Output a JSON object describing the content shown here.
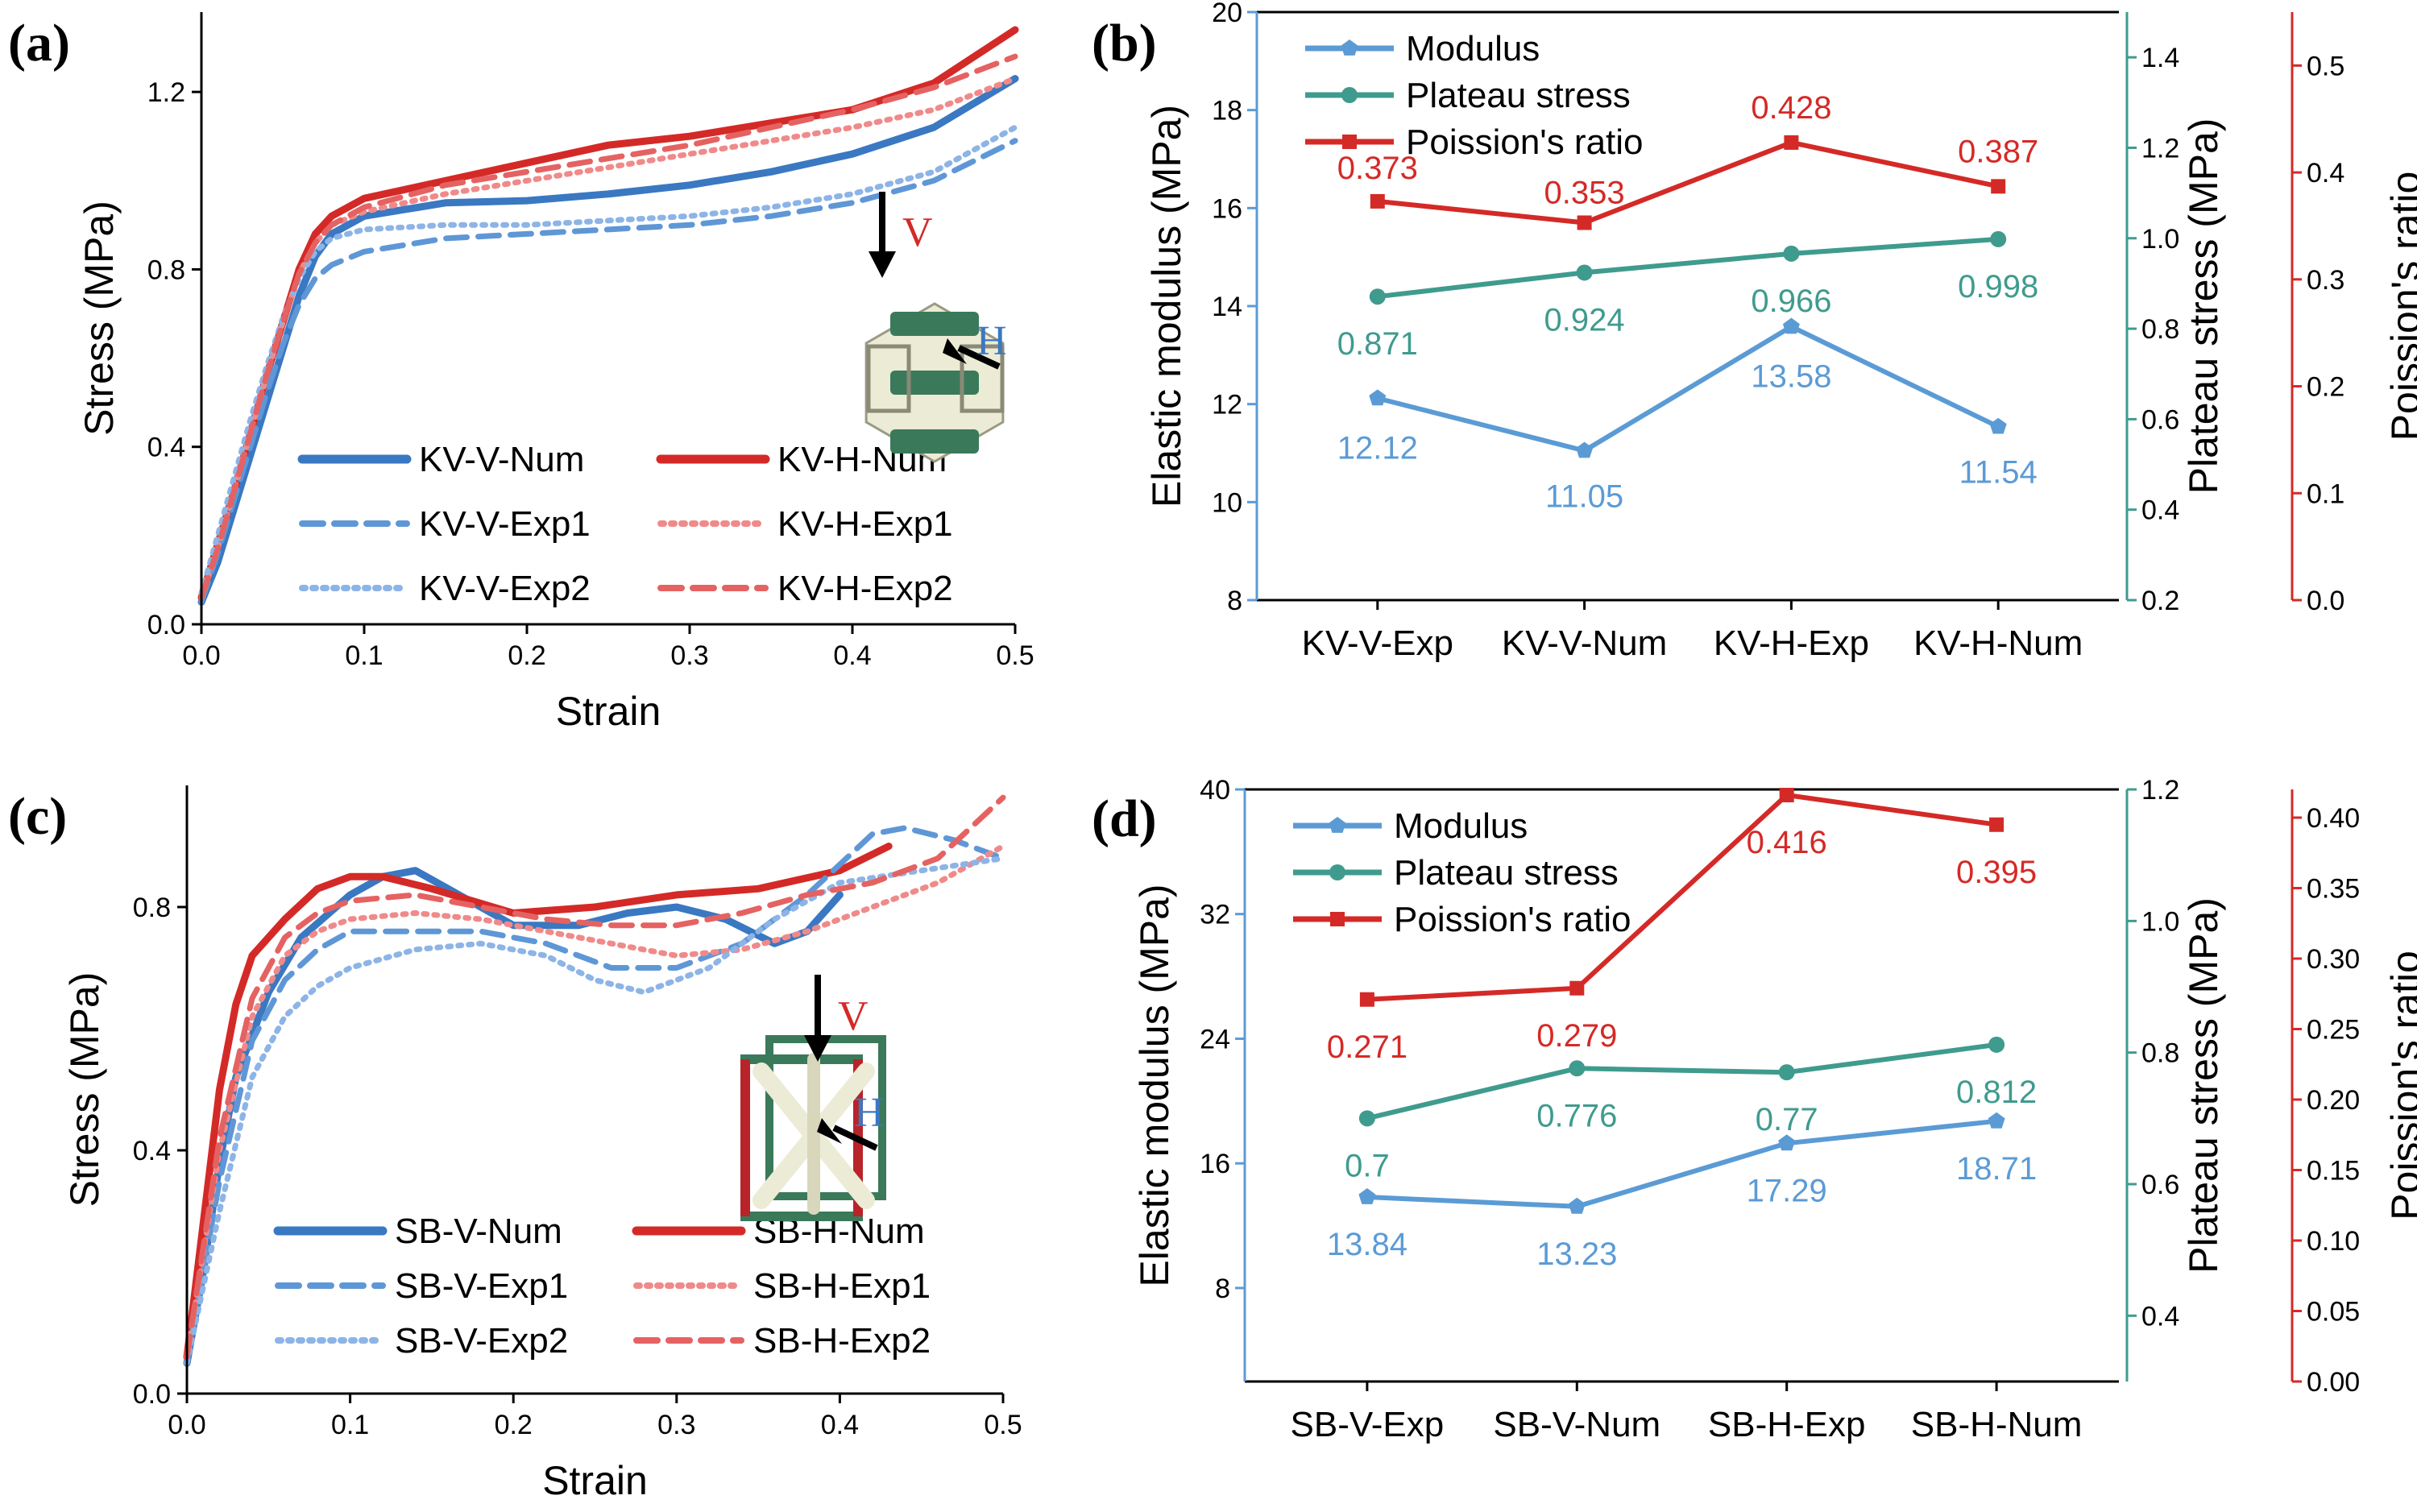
{
  "colors": {
    "blue": "#3a78c2",
    "red": "#d42a27",
    "blue_exp": "#5f97d6",
    "blue_exp2": "#8db4e6",
    "red_exp1": "#f08a8a",
    "red_exp2": "#e56262",
    "bar_blue": "#5b9bd5",
    "bar_teal": "#3f9b8e",
    "bar_red": "#d42a27",
    "frame_green": "#3a7a5a",
    "frame_cream": "#ecebd5"
  },
  "chart_data": [
    {
      "panel": "(a)",
      "type": "line",
      "xlabel": "Strain",
      "ylabel": "Stress (MPa)",
      "xlim": [
        0,
        0.5
      ],
      "ylim": [
        0,
        1.38
      ],
      "xticks": [
        "0.0",
        "0.1",
        "0.2",
        "0.3",
        "0.4",
        "0.5"
      ],
      "yticks": [
        "0.0",
        "0.4",
        "0.8",
        "1.2"
      ],
      "legend_position": "bottom-right",
      "inset_labels": [
        "V",
        "H"
      ],
      "series": [
        {
          "name": "KV-V-Num",
          "style": "solid",
          "color": "blue",
          "x": [
            0,
            0.01,
            0.02,
            0.03,
            0.04,
            0.05,
            0.06,
            0.07,
            0.08,
            0.1,
            0.15,
            0.2,
            0.25,
            0.3,
            0.35,
            0.4,
            0.45,
            0.5
          ],
          "y": [
            0.05,
            0.14,
            0.26,
            0.38,
            0.5,
            0.62,
            0.74,
            0.83,
            0.88,
            0.92,
            0.95,
            0.955,
            0.97,
            0.99,
            1.02,
            1.06,
            1.12,
            1.23
          ]
        },
        {
          "name": "KV-H-Num",
          "style": "solid",
          "color": "red",
          "x": [
            0,
            0.01,
            0.02,
            0.03,
            0.04,
            0.05,
            0.06,
            0.07,
            0.08,
            0.1,
            0.15,
            0.2,
            0.25,
            0.3,
            0.35,
            0.4,
            0.45,
            0.5
          ],
          "y": [
            0.06,
            0.18,
            0.3,
            0.43,
            0.56,
            0.68,
            0.8,
            0.88,
            0.92,
            0.96,
            1.0,
            1.04,
            1.08,
            1.1,
            1.13,
            1.16,
            1.22,
            1.34
          ]
        },
        {
          "name": "KV-V-Exp1",
          "style": "dash",
          "color": "blue_exp",
          "x": [
            0,
            0.01,
            0.02,
            0.03,
            0.04,
            0.05,
            0.06,
            0.07,
            0.08,
            0.1,
            0.15,
            0.2,
            0.25,
            0.3,
            0.35,
            0.4,
            0.45,
            0.5
          ],
          "y": [
            0.05,
            0.16,
            0.28,
            0.4,
            0.52,
            0.63,
            0.72,
            0.78,
            0.81,
            0.84,
            0.87,
            0.88,
            0.89,
            0.9,
            0.92,
            0.95,
            1.0,
            1.09
          ]
        },
        {
          "name": "KV-H-Exp1",
          "style": "dot",
          "color": "red_exp1",
          "x": [
            0,
            0.01,
            0.02,
            0.03,
            0.04,
            0.05,
            0.06,
            0.07,
            0.08,
            0.1,
            0.15,
            0.2,
            0.25,
            0.3,
            0.35,
            0.4,
            0.45,
            0.5
          ],
          "y": [
            0.06,
            0.17,
            0.3,
            0.43,
            0.56,
            0.68,
            0.79,
            0.86,
            0.9,
            0.93,
            0.97,
            1.0,
            1.03,
            1.06,
            1.09,
            1.12,
            1.16,
            1.23
          ]
        },
        {
          "name": "KV-V-Exp2",
          "style": "dot",
          "color": "blue_exp2",
          "x": [
            0,
            0.01,
            0.02,
            0.03,
            0.04,
            0.05,
            0.06,
            0.07,
            0.08,
            0.1,
            0.15,
            0.2,
            0.25,
            0.3,
            0.35,
            0.4,
            0.45,
            0.5
          ],
          "y": [
            0.07,
            0.2,
            0.33,
            0.46,
            0.58,
            0.69,
            0.78,
            0.84,
            0.87,
            0.89,
            0.9,
            0.9,
            0.91,
            0.92,
            0.94,
            0.97,
            1.02,
            1.12
          ]
        },
        {
          "name": "KV-H-Exp2",
          "style": "dash",
          "color": "red_exp2",
          "x": [
            0,
            0.01,
            0.02,
            0.03,
            0.04,
            0.05,
            0.06,
            0.07,
            0.08,
            0.1,
            0.15,
            0.2,
            0.25,
            0.3,
            0.35,
            0.4,
            0.45,
            0.5
          ],
          "y": [
            0.06,
            0.17,
            0.3,
            0.43,
            0.56,
            0.68,
            0.79,
            0.86,
            0.9,
            0.94,
            0.99,
            1.02,
            1.05,
            1.08,
            1.12,
            1.16,
            1.21,
            1.28
          ]
        }
      ]
    },
    {
      "panel": "(b)",
      "type": "line",
      "categories": [
        "KV-V-Exp",
        "KV-V-Num",
        "KV-H-Exp",
        "KV-H-Num"
      ],
      "ylabel": "Elastic modulus (MPa)",
      "ylabel_right1": "Plateau stress (MPa)",
      "ylabel_right2": "Poission's ratio",
      "ylim": [
        8,
        20
      ],
      "ylim_right1": [
        0.2,
        1.5
      ],
      "ylim_right2": [
        0,
        0.55
      ],
      "yticks": [
        "8",
        "10",
        "12",
        "14",
        "16",
        "18",
        "20"
      ],
      "yticks_right1": [
        "0.2",
        "0.4",
        "0.6",
        "0.8",
        "1.0",
        "1.2",
        "1.4"
      ],
      "yticks_right2": [
        "0.0",
        "0.1",
        "0.2",
        "0.3",
        "0.4",
        "0.5"
      ],
      "legend_position": "top-left",
      "series": [
        {
          "name": "Modulus",
          "axis": "left",
          "color": "bar_blue",
          "marker": "pentagon",
          "values": [
            12.12,
            11.05,
            13.58,
            11.54
          ],
          "labels": [
            "12.12",
            "11.05",
            "13.58",
            "11.54"
          ]
        },
        {
          "name": "Plateau stress",
          "axis": "right1",
          "color": "bar_teal",
          "marker": "circle",
          "values": [
            0.871,
            0.924,
            0.966,
            0.998
          ],
          "labels": [
            "0.871",
            "0.924",
            "0.966",
            "0.998"
          ]
        },
        {
          "name": "Poission's ratio",
          "axis": "right2",
          "color": "bar_red",
          "marker": "square",
          "values": [
            0.373,
            0.353,
            0.428,
            0.387
          ],
          "labels": [
            "0.373",
            "0.353",
            "0.428",
            "0.387"
          ]
        }
      ]
    },
    {
      "panel": "(c)",
      "type": "line",
      "xlabel": "Strain",
      "ylabel": "Stress (MPa)",
      "xlim": [
        0,
        0.5
      ],
      "ylim": [
        0,
        1.0
      ],
      "xticks": [
        "0.0",
        "0.1",
        "0.2",
        "0.3",
        "0.4",
        "0.5"
      ],
      "yticks": [
        "0.0",
        "0.4",
        "0.8"
      ],
      "legend_position": "bottom-right",
      "inset_labels": [
        "V",
        "H"
      ],
      "series": [
        {
          "name": "SB-V-Num",
          "style": "solid",
          "color": "blue",
          "x": [
            0,
            0.01,
            0.02,
            0.03,
            0.05,
            0.07,
            0.1,
            0.12,
            0.14,
            0.16,
            0.2,
            0.24,
            0.27,
            0.3,
            0.33,
            0.36,
            0.38,
            0.4
          ],
          "y": [
            0.05,
            0.2,
            0.38,
            0.52,
            0.66,
            0.75,
            0.82,
            0.85,
            0.86,
            0.83,
            0.77,
            0.77,
            0.79,
            0.8,
            0.78,
            0.74,
            0.76,
            0.82
          ]
        },
        {
          "name": "SB-H-Num",
          "style": "solid",
          "color": "red",
          "x": [
            0,
            0.01,
            0.02,
            0.03,
            0.04,
            0.06,
            0.08,
            0.1,
            0.12,
            0.15,
            0.2,
            0.25,
            0.3,
            0.35,
            0.4,
            0.43
          ],
          "y": [
            0.06,
            0.28,
            0.5,
            0.64,
            0.72,
            0.78,
            0.83,
            0.85,
            0.85,
            0.83,
            0.79,
            0.8,
            0.82,
            0.83,
            0.86,
            0.9
          ]
        },
        {
          "name": "SB-V-Exp1",
          "style": "dash",
          "color": "blue_exp",
          "x": [
            0,
            0.02,
            0.04,
            0.06,
            0.08,
            0.1,
            0.14,
            0.18,
            0.22,
            0.26,
            0.3,
            0.34,
            0.38,
            0.42,
            0.44,
            0.47,
            0.5
          ],
          "y": [
            0.05,
            0.35,
            0.58,
            0.68,
            0.73,
            0.76,
            0.76,
            0.76,
            0.74,
            0.7,
            0.7,
            0.74,
            0.82,
            0.92,
            0.93,
            0.91,
            0.88
          ]
        },
        {
          "name": "SB-H-Exp1",
          "style": "dot",
          "color": "red_exp1",
          "x": [
            0,
            0.02,
            0.04,
            0.06,
            0.08,
            0.1,
            0.14,
            0.18,
            0.22,
            0.26,
            0.3,
            0.34,
            0.38,
            0.42,
            0.46,
            0.5
          ],
          "y": [
            0.06,
            0.4,
            0.62,
            0.72,
            0.76,
            0.78,
            0.79,
            0.78,
            0.76,
            0.74,
            0.72,
            0.73,
            0.76,
            0.8,
            0.84,
            0.9
          ]
        },
        {
          "name": "SB-V-Exp2",
          "style": "dot",
          "color": "blue_exp2",
          "x": [
            0,
            0.02,
            0.04,
            0.06,
            0.08,
            0.1,
            0.14,
            0.18,
            0.22,
            0.25,
            0.28,
            0.32,
            0.36,
            0.4,
            0.45,
            0.5
          ],
          "y": [
            0.05,
            0.3,
            0.52,
            0.62,
            0.67,
            0.7,
            0.73,
            0.74,
            0.72,
            0.68,
            0.66,
            0.7,
            0.78,
            0.84,
            0.86,
            0.88
          ]
        },
        {
          "name": "SB-H-Exp2",
          "style": "dash",
          "color": "red_exp2",
          "x": [
            0,
            0.02,
            0.04,
            0.06,
            0.08,
            0.1,
            0.14,
            0.18,
            0.22,
            0.26,
            0.3,
            0.34,
            0.38,
            0.42,
            0.46,
            0.5
          ],
          "y": [
            0.06,
            0.42,
            0.65,
            0.75,
            0.79,
            0.81,
            0.82,
            0.8,
            0.78,
            0.77,
            0.77,
            0.79,
            0.82,
            0.84,
            0.88,
            0.98
          ]
        }
      ]
    },
    {
      "panel": "(d)",
      "type": "line",
      "categories": [
        "SB-V-Exp",
        "SB-V-Num",
        "SB-H-Exp",
        "SB-H-Num"
      ],
      "ylabel": "Elastic modulus (MPa)",
      "ylabel_right1": "Plateau stress (MPa)",
      "ylabel_right2": "Poission's ratio",
      "ylim": [
        2,
        40
      ],
      "ylim_right1": [
        0.3,
        1.2
      ],
      "ylim_right2": [
        0,
        0.42
      ],
      "yticks": [
        "8",
        "16",
        "24",
        "32",
        "40"
      ],
      "yticks_right1": [
        "0.4",
        "0.6",
        "0.8",
        "1.0",
        "1.2"
      ],
      "yticks_right2": [
        "0.00",
        "0.05",
        "0.10",
        "0.15",
        "0.20",
        "0.25",
        "0.30",
        "0.35",
        "0.40"
      ],
      "legend_position": "top-left",
      "series": [
        {
          "name": "Modulus",
          "axis": "left",
          "color": "bar_blue",
          "marker": "pentagon",
          "values": [
            13.84,
            13.23,
            17.29,
            18.71
          ],
          "labels": [
            "13.84",
            "13.23",
            "17.29",
            "18.71"
          ]
        },
        {
          "name": "Plateau stress",
          "axis": "right1",
          "color": "bar_teal",
          "marker": "circle",
          "values": [
            0.7,
            0.776,
            0.77,
            0.812
          ],
          "labels": [
            "0.7",
            "0.776",
            "0.77",
            "0.812"
          ]
        },
        {
          "name": "Poission's ratio",
          "axis": "right2",
          "color": "bar_red",
          "marker": "square",
          "values": [
            0.271,
            0.279,
            0.416,
            0.395
          ],
          "labels": [
            "0.271",
            "0.279",
            "0.416",
            "0.395"
          ]
        }
      ]
    }
  ]
}
